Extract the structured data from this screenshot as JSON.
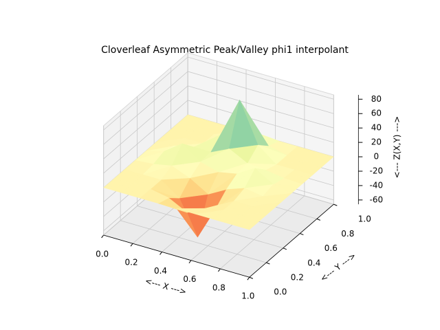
{
  "chart_data": {
    "type": "surface3d",
    "title": "Cloverleaf Asymmetric Peak/Valley phi1 interpolant",
    "x_label": "<--- X --->",
    "y_label": "<--- Y --->",
    "z_label": "<--- Z(X,Y) --->",
    "x": [
      0,
      0.125,
      0.25,
      0.375,
      0.5,
      0.625,
      0.75,
      0.875,
      1
    ],
    "y": [
      0,
      0.125,
      0.25,
      0.375,
      0.5,
      0.625,
      0.75,
      0.875,
      1
    ],
    "z": [
      [
        0,
        0,
        0,
        0,
        0,
        0,
        0,
        0,
        0
      ],
      [
        0,
        0,
        0,
        -5,
        -18,
        -5,
        0,
        0,
        0
      ],
      [
        0,
        0,
        0,
        -18,
        -65,
        -18,
        0,
        0,
        0
      ],
      [
        0,
        2,
        7,
        -3,
        -18,
        -4,
        5,
        1,
        0
      ],
      [
        0,
        7,
        25,
        7,
        0,
        5,
        20,
        5,
        0
      ],
      [
        0,
        2,
        7,
        8,
        20,
        7,
        5,
        1,
        0
      ],
      [
        0,
        0,
        0,
        20,
        75,
        20,
        0,
        0,
        0
      ],
      [
        0,
        0,
        0,
        6,
        20,
        6,
        0,
        0,
        0
      ],
      [
        0,
        0,
        0,
        0,
        0,
        0,
        0,
        0,
        0
      ]
    ],
    "colormap": [
      "#9e0142",
      "#d53e4f",
      "#f46d43",
      "#fdae61",
      "#fee08b",
      "#ffffbf",
      "#e6f598",
      "#abdda4",
      "#66c2a5",
      "#3288bd",
      "#5e4fa2"
    ],
    "xlim": [
      0,
      1
    ],
    "ylim": [
      0,
      1
    ],
    "zlim": [
      -66,
      86
    ],
    "xticks": [
      {
        "value": 0,
        "label": "0.0"
      },
      {
        "value": 0.2,
        "label": "0.2"
      },
      {
        "value": 0.4,
        "label": "0.4"
      },
      {
        "value": 0.6,
        "label": "0.6"
      },
      {
        "value": 0.8,
        "label": "0.8"
      },
      {
        "value": 1,
        "label": "1.0"
      }
    ],
    "yticks": [
      {
        "value": 0,
        "label": "0.0"
      },
      {
        "value": 0.2,
        "label": "0.2"
      },
      {
        "value": 0.4,
        "label": "0.4"
      },
      {
        "value": 0.6,
        "label": "0.6"
      },
      {
        "value": 0.8,
        "label": "0.8"
      },
      {
        "value": 1,
        "label": "1.0"
      }
    ],
    "zticks": [
      -60,
      -40,
      -20,
      0,
      20,
      40,
      60,
      80
    ],
    "grid": true
  }
}
